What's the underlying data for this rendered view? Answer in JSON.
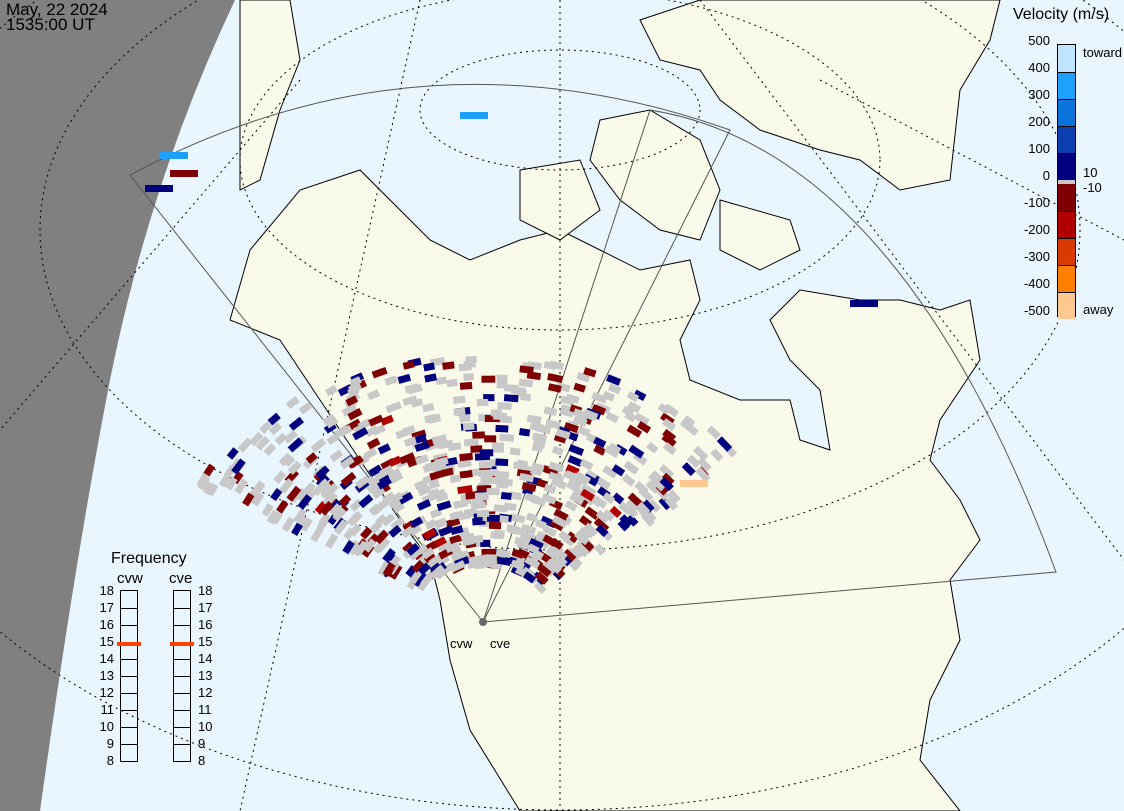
{
  "header": {
    "date": "May, 22 2024",
    "time": "1535:00 UT"
  },
  "velocity_legend": {
    "title": "Velocity (m/s)",
    "ticks": [
      "500",
      "400",
      "300",
      "200",
      "100",
      "0",
      "-100",
      "-200",
      "-300",
      "-400",
      "-500"
    ],
    "toward_label": "toward",
    "away_label": "away",
    "threshold_pos": "10",
    "threshold_neg": "-10",
    "colors": [
      "#bfe4ff",
      "#1ea0ff",
      "#0a74dc",
      "#0b3fb0",
      "#00007f",
      "#7f0000",
      "#b00000",
      "#d83a00",
      "#ff8000",
      "#ffc890"
    ],
    "ground_scatter_color": "#c8c8c8"
  },
  "frequency_panel": {
    "title": "Frequency",
    "radars": [
      {
        "name": "cvw",
        "frequency_mhz": 14.8
      },
      {
        "name": "cve",
        "frequency_mhz": 14.8
      }
    ],
    "ticks": [
      "18",
      "17",
      "16",
      "15",
      "14",
      "13",
      "12",
      "11",
      "10",
      "9",
      "8"
    ],
    "marker_color": "#ff4000"
  },
  "map": {
    "radar_labels": [
      "cvw",
      "cve"
    ],
    "night_color": "#808080",
    "land_color": "#fafaeb",
    "ocean_color": "#eaf6ff"
  }
}
